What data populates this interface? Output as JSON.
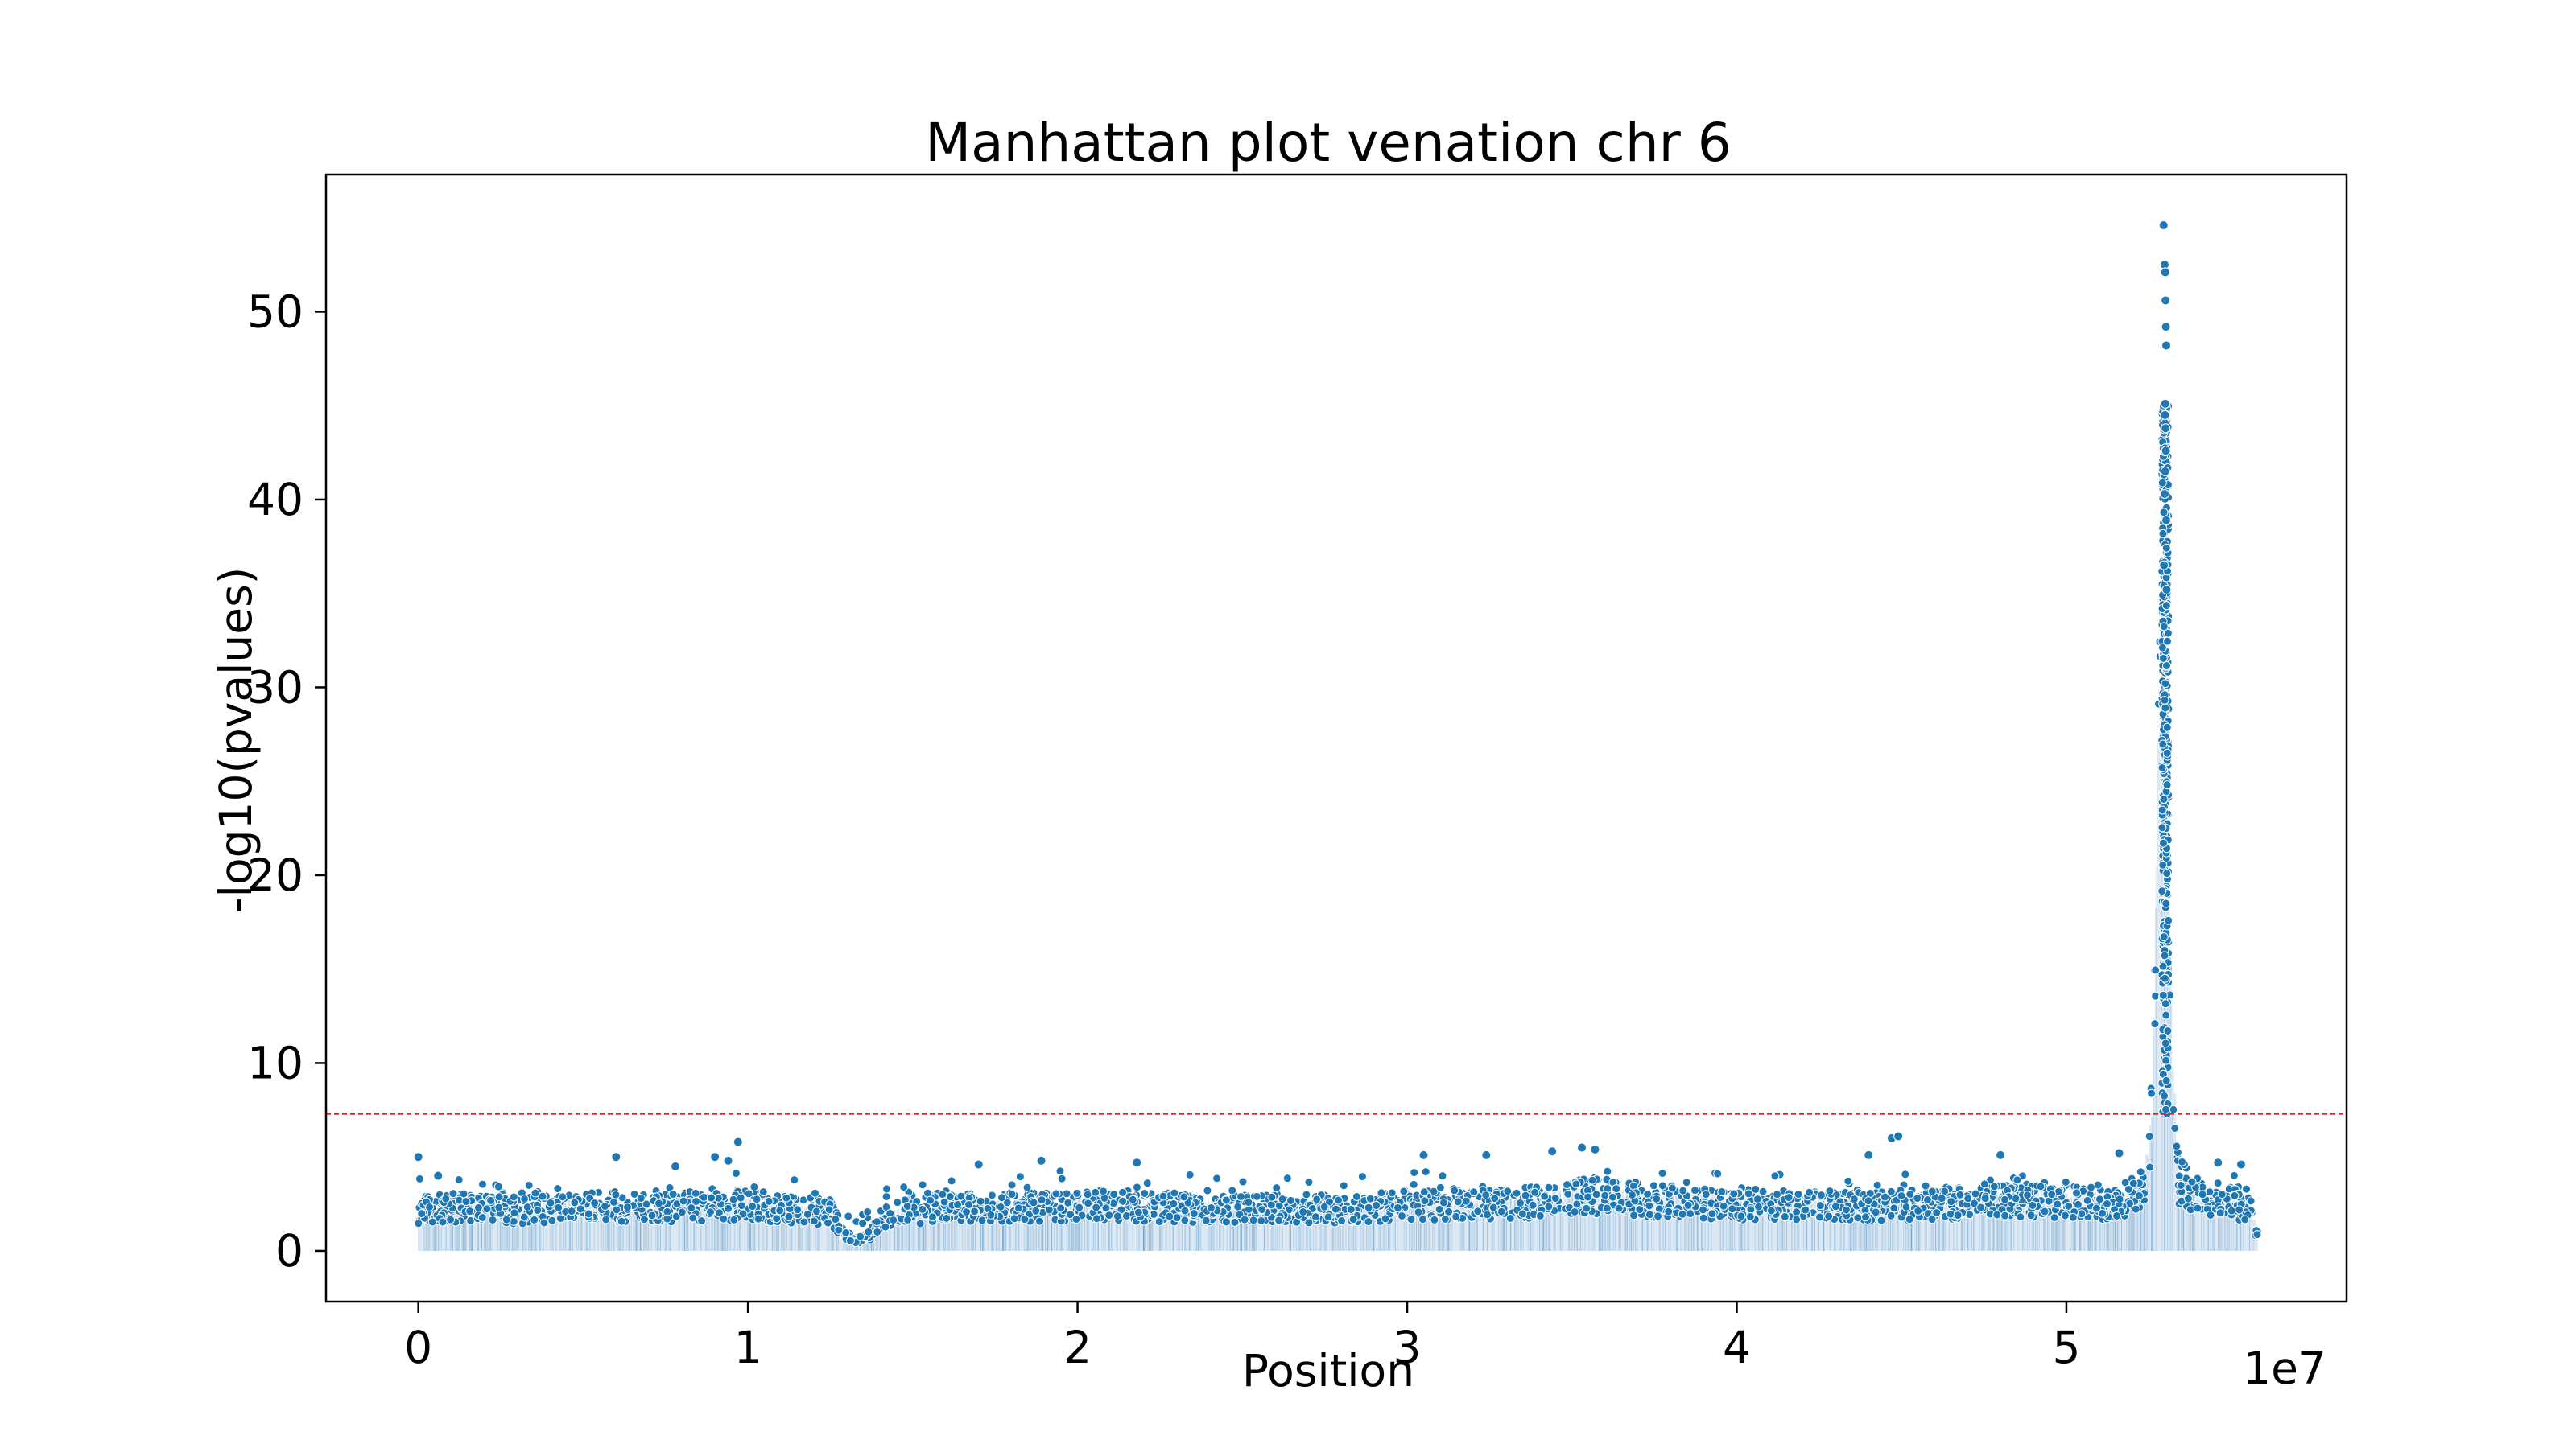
{
  "chart_data": {
    "type": "scatter",
    "title": "Manhattan plot venation chr 6",
    "xlabel": "Position",
    "ylabel": "-log10(pvalues)",
    "x_offset_label": "1e7",
    "x_scale": 10000000,
    "xlim": [
      -2800000,
      58500000
    ],
    "ylim": [
      -2.7,
      57.3
    ],
    "x_ticks": [
      0,
      10000000,
      20000000,
      30000000,
      40000000,
      50000000
    ],
    "x_tick_labels": [
      "0",
      "1",
      "2",
      "3",
      "4",
      "5"
    ],
    "y_ticks": [
      0,
      10,
      20,
      30,
      40,
      50
    ],
    "y_tick_labels": [
      "0",
      "10",
      "20",
      "30",
      "40",
      "50"
    ],
    "threshold": {
      "y": 7.3,
      "color": "#d62728",
      "style": "dashed"
    },
    "colors": {
      "point": "#1f77b4",
      "fill": "#dce8f3",
      "background": "#ffffff",
      "frame": "#000000"
    },
    "point_range": [
      0,
      55800000
    ],
    "background_profile": {
      "x": [
        0,
        1000000,
        3000000,
        5000000,
        7000000,
        9000000,
        10000000,
        11000000,
        12500000,
        12800000,
        13200000,
        13700000,
        14000000,
        14600000,
        16000000,
        18000000,
        20000000,
        22000000,
        24000000,
        26000000,
        28000000,
        30000000,
        32000000,
        34000000,
        35500000,
        37000000,
        39000000,
        41000000,
        43000000,
        44500000,
        46000000,
        48000000,
        50000000,
        51500000,
        52300000,
        52600000,
        52800000,
        53000000,
        53200000,
        53400000,
        54000000,
        55000000,
        55600000,
        55800000
      ],
      "y": [
        2.6,
        2.8,
        2.6,
        2.9,
        2.7,
        2.9,
        3.0,
        2.7,
        2.5,
        1.5,
        0.6,
        1.0,
        2.0,
        2.5,
        2.8,
        2.8,
        2.9,
        2.8,
        2.7,
        2.7,
        2.6,
        2.9,
        3.0,
        3.2,
        3.6,
        3.3,
        3.0,
        3.0,
        2.9,
        2.9,
        3.0,
        3.2,
        3.2,
        3.0,
        4.0,
        8.0,
        30.0,
        35.0,
        12.0,
        4.5,
        3.5,
        3.3,
        2.5,
        1.0
      ]
    },
    "peak_points": {
      "x": [
        52950000,
        52980000,
        53000000,
        53010000,
        53020000,
        53030000,
        53000000,
        52990000,
        53010000,
        53020000,
        53000000,
        52980000,
        53030000,
        52960000,
        53040000
      ],
      "y": [
        54.6,
        52.5,
        52.1,
        50.6,
        49.2,
        48.2,
        45.1,
        44.5,
        43.8,
        42.6,
        41.5,
        40.3,
        38.9,
        36.5,
        35.2
      ]
    },
    "notable_points": {
      "x": [
        0,
        600000,
        6000000,
        7800000,
        9000000,
        9400000,
        9700000,
        17000000,
        18900000,
        21800000,
        30500000,
        32400000,
        34400000,
        35300000,
        35700000,
        44000000,
        44700000,
        44900000,
        48000000,
        51600000,
        54600000,
        55300000
      ],
      "y": [
        5.0,
        4.0,
        5.0,
        4.5,
        5.0,
        4.8,
        5.8,
        4.6,
        4.8,
        4.7,
        5.1,
        5.1,
        5.3,
        5.5,
        5.4,
        5.1,
        6.0,
        6.1,
        5.1,
        5.2,
        4.7,
        4.6
      ]
    }
  }
}
